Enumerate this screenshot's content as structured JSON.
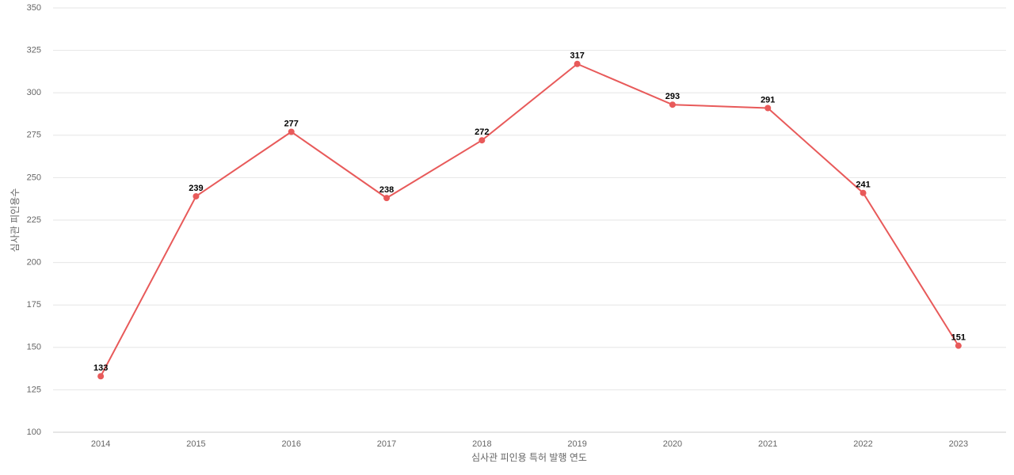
{
  "chart_data": {
    "type": "line",
    "x_label": "심사관 피인용 특허 발행 연도",
    "y_label": "심사관 피인용수",
    "categories": [
      "2014",
      "2015",
      "2016",
      "2017",
      "2018",
      "2019",
      "2020",
      "2021",
      "2022",
      "2023"
    ],
    "series": [
      {
        "color": "#e85a5a",
        "values": [
          133,
          239,
          277,
          238,
          272,
          317,
          293,
          291,
          241,
          151
        ]
      }
    ],
    "ylim": [
      100,
      350
    ],
    "yticks": [
      100,
      125,
      150,
      175,
      200,
      225,
      250,
      275,
      300,
      325,
      350
    ],
    "grid": true
  }
}
